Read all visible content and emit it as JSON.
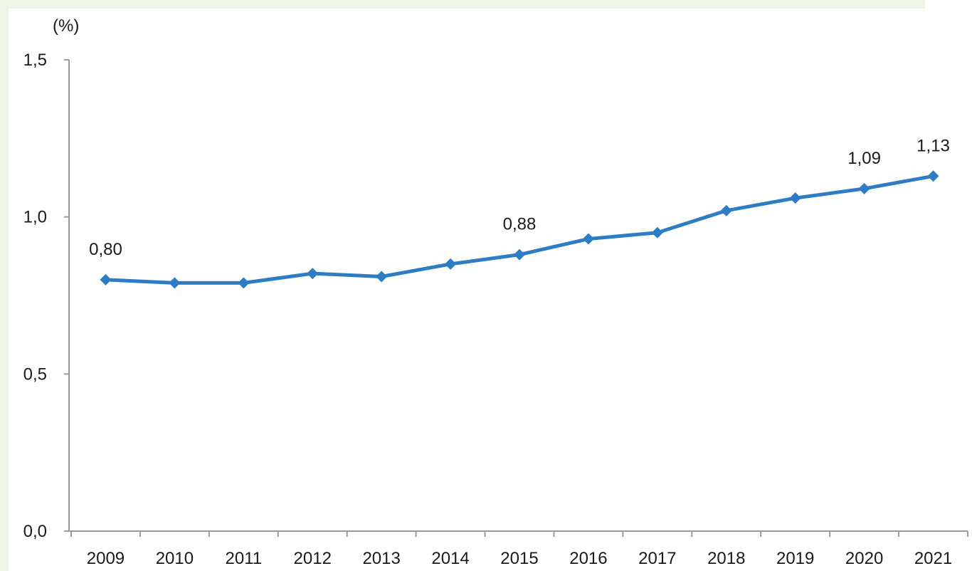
{
  "chart_data": {
    "type": "line",
    "unit_label": "(%)",
    "x": [
      "2009",
      "2010",
      "2011",
      "2012",
      "2013",
      "2014",
      "2015",
      "2016",
      "2017",
      "2018",
      "2019",
      "2020",
      "2021"
    ],
    "series": [
      {
        "values": [
          0.8,
          0.79,
          0.79,
          0.82,
          0.81,
          0.85,
          0.88,
          0.93,
          0.95,
          1.02,
          1.06,
          1.09,
          1.13
        ]
      }
    ],
    "data_labels": [
      {
        "x": "2009",
        "text": "0,80"
      },
      {
        "x": "2015",
        "text": "0,88"
      },
      {
        "x": "2020",
        "text": "1,09"
      },
      {
        "x": "2021",
        "text": "1,13"
      }
    ],
    "y_ticks": [
      {
        "value": 0.0,
        "label": "0,0"
      },
      {
        "value": 0.5,
        "label": "0,5"
      },
      {
        "value": 1.0,
        "label": "1,0"
      },
      {
        "value": 1.5,
        "label": "1,5"
      }
    ],
    "ylim": [
      0,
      1.5
    ],
    "grid": false,
    "line_color": "#2e7cc3",
    "axis_color": "#9a9a9a"
  }
}
